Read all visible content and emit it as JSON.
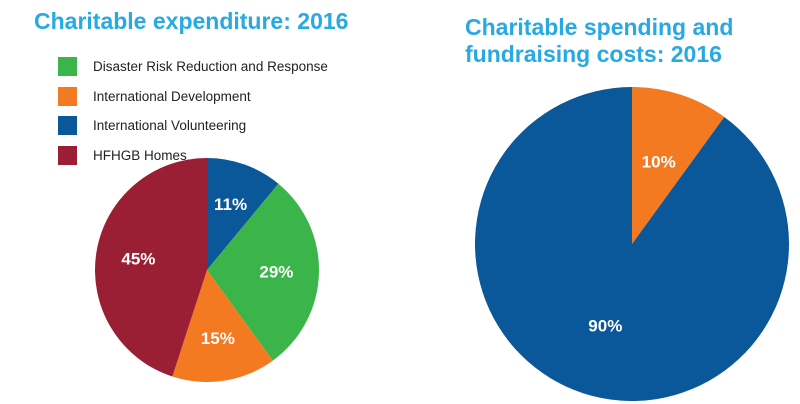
{
  "chart_data": [
    {
      "type": "pie",
      "title": "Charitable expenditure: 2016",
      "categories": [
        "International Volunteering",
        "Disaster Risk Reduction and Response",
        "International Development",
        "HFHGB Homes"
      ],
      "values": [
        11,
        29,
        15,
        45
      ],
      "value_labels": [
        "11%",
        "29%",
        "15%",
        "45%"
      ],
      "colors": [
        "#0a5799",
        "#3bb54a",
        "#f37a21",
        "#9b1f34"
      ],
      "legend": {
        "placement": "top-left",
        "entries": [
          {
            "label": "Disaster Risk Reduction and Response",
            "color": "#3bb54a"
          },
          {
            "label": "International Development",
            "color": "#f37a21"
          },
          {
            "label": "International Volunteering",
            "color": "#0a5799"
          },
          {
            "label": "HFHGB Homes",
            "color": "#9b1f34"
          }
        ]
      }
    },
    {
      "type": "pie",
      "title": "Charitable spending and fundraising costs: 2016",
      "values": [
        10,
        90
      ],
      "value_labels": [
        "10%",
        "90%"
      ],
      "colors": [
        "#f37a21",
        "#0a5799"
      ]
    }
  ]
}
